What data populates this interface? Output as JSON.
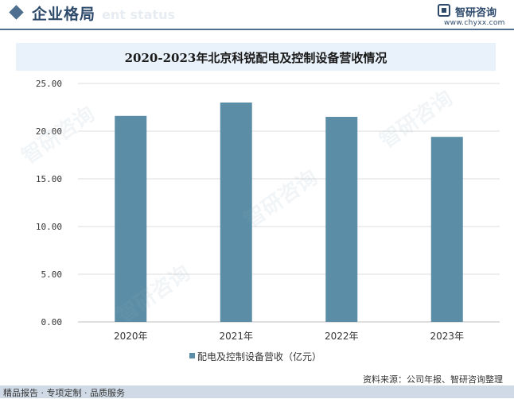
{
  "header": {
    "title": "企业格局",
    "ghost_text": "ent status",
    "logo_name": "智研咨询",
    "logo_url": "www.chyxx.com"
  },
  "chart_data": {
    "type": "bar",
    "title": "2020-2023年北京科锐配电及控制设备营收情况",
    "categories": [
      "2020年",
      "2021年",
      "2022年",
      "2023年"
    ],
    "series": [
      {
        "name": "配电及控制设备营收（亿元）",
        "values": [
          21.6,
          23.0,
          21.5,
          19.4
        ],
        "color": "#5b8ea6"
      }
    ],
    "ylim": [
      0,
      25
    ],
    "yticks": [
      "0.00",
      "5.00",
      "10.00",
      "15.00",
      "20.00",
      "25.00"
    ],
    "grid": true,
    "legend": "bottom"
  },
  "source": "资料来源：公司年报、智研咨询整理",
  "footer": {
    "text": "精品报告 · 专项定制 · 品质服务"
  },
  "colors": {
    "accent": "#2d4a6b",
    "bar": "#5b8ea6",
    "band": "#e9f2fa",
    "footer": "#cfdae6"
  }
}
